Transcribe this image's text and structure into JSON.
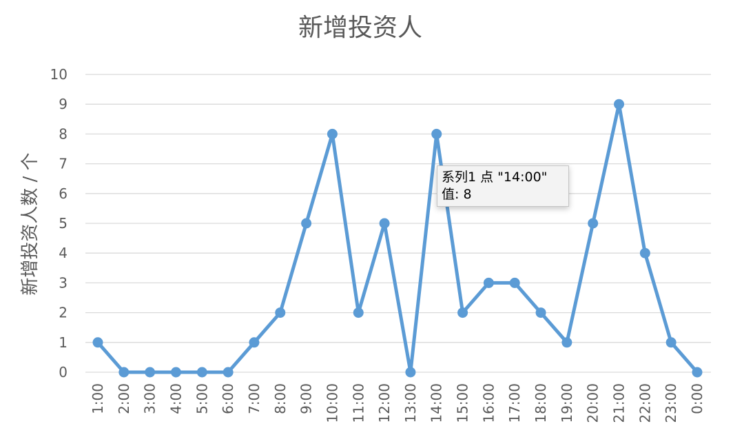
{
  "chart_data": {
    "type": "line",
    "title": "新增投资人",
    "xlabel": "",
    "ylabel": "新增投资人数 / 个",
    "categories": [
      "1:00",
      "2:00",
      "3:00",
      "4:00",
      "5:00",
      "6:00",
      "7:00",
      "8:00",
      "9:00",
      "10:00",
      "11:00",
      "12:00",
      "13:00",
      "14:00",
      "15:00",
      "16:00",
      "17:00",
      "18:00",
      "19:00",
      "20:00",
      "21:00",
      "22:00",
      "23:00",
      "0:00"
    ],
    "series": [
      {
        "values": [
          1,
          0,
          0,
          0,
          0,
          0,
          1,
          2,
          5,
          8,
          2,
          5,
          0,
          8,
          2,
          3,
          3,
          2,
          1,
          5,
          9,
          4,
          1,
          0
        ],
        "color": "#5b9bd5"
      }
    ],
    "ylim": [
      0,
      10
    ],
    "yticks": [
      0,
      1,
      2,
      3,
      4,
      5,
      6,
      7,
      8,
      9,
      10
    ],
    "grid": true,
    "legend": "none"
  },
  "tooltip": {
    "line1": "系列1 点 \"14:00\"",
    "line2": "值: 8"
  }
}
